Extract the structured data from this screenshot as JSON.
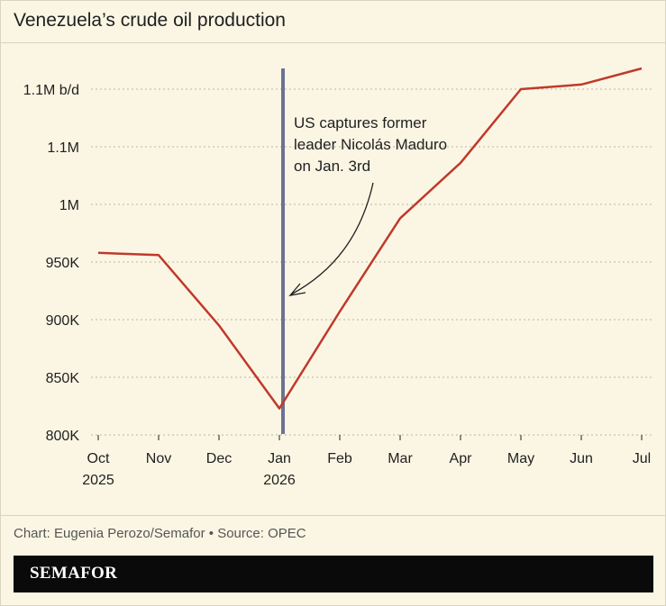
{
  "title": "Venezuela’s crude oil production",
  "source": "Chart: Eugenia Perozo/Semafor • Source: OPEC",
  "brand": "SEMAFOR",
  "colors": {
    "background": "#fbf6e4",
    "line": "#c0392b",
    "event_marker": "#6b7394",
    "grid": "#b9b4a4"
  },
  "chart_data": {
    "type": "line",
    "title": "Venezuela’s crude oil production",
    "x": [
      "Oct 2025",
      "Nov",
      "Dec",
      "Jan 2026",
      "Feb",
      "Mar",
      "Apr",
      "May",
      "Jun",
      "Jul"
    ],
    "x_tick_labels": [
      {
        "line1": "Oct",
        "line2": "2025"
      },
      {
        "line1": "Nov",
        "line2": ""
      },
      {
        "line1": "Dec",
        "line2": ""
      },
      {
        "line1": "Jan",
        "line2": "2026"
      },
      {
        "line1": "Feb",
        "line2": ""
      },
      {
        "line1": "Mar",
        "line2": ""
      },
      {
        "line1": "Apr",
        "line2": ""
      },
      {
        "line1": "May",
        "line2": ""
      },
      {
        "line1": "Jun",
        "line2": ""
      },
      {
        "line1": "Jul",
        "line2": ""
      }
    ],
    "series": [
      {
        "values": [
          958000,
          956000,
          895000,
          823000,
          907000,
          988000,
          1036000,
          1100000,
          1104000,
          1118000
        ]
      }
    ],
    "y_ticks": [
      800000,
      850000,
      900000,
      950000,
      1000000,
      1050000,
      1100000
    ],
    "y_tick_labels": [
      "800K",
      "850K",
      "900K",
      "950K",
      "1M",
      "1.1M",
      "1.1M b/d"
    ],
    "ylim": [
      800000,
      1100000
    ],
    "grid": true,
    "event": {
      "x_index": 3,
      "label_lines": [
        "US captures former",
        "leader Nicolás Maduro",
        "on Jan. 3rd"
      ]
    }
  }
}
